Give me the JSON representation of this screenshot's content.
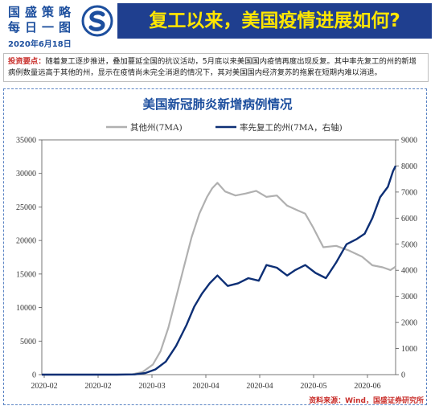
{
  "header": {
    "brand_line1": "国盛策略",
    "brand_line2": "每日一图",
    "date": "2020年6月18日",
    "banner_title": "复工以来，美国疫情进展如何?"
  },
  "note": {
    "label": "投资要点：",
    "line1": "随着复工逐步推进，叠加蔓延全国的抗议活动，5月底以来美国国内疫情再度出现反复。其中率先复工的州的新增",
    "line2": "病例数量远高于其他的州，显示在疫情尚未完全消退的情况下，其对美国国内经济复苏的拖累在短期内难以消退。"
  },
  "source": "资料来源：Wind，国盛证券研究所",
  "colors": {
    "brand": "#1d4f9e",
    "banner_bg": "#1f3f8f",
    "banner_text": "#ffe600",
    "accent_red": "#c9302c"
  },
  "chart_data": {
    "type": "line",
    "title": "美国新冠肺炎新增病例情况",
    "x_ticks": [
      "2020-02",
      "2020-02",
      "2020-03",
      "2020-04",
      "2020-04",
      "2020-05",
      "2020-06"
    ],
    "x_range": [
      "2020-02-01",
      "2020-06-17"
    ],
    "y_left": {
      "ticks": [
        "0",
        "5000",
        "10000",
        "15000",
        "20000",
        "25000",
        "30000",
        "35000"
      ],
      "range": [
        0,
        35000
      ]
    },
    "y_right": {
      "ticks": [
        "0",
        "1000",
        "2000",
        "3000",
        "4000",
        "5000",
        "6000",
        "7000",
        "8000",
        "9000"
      ],
      "range": [
        0,
        9000
      ]
    },
    "legend_placement": "top",
    "series": [
      {
        "name": "其他州(7MA)",
        "axis": "left",
        "color": "#b0b0b0",
        "x": [
          "2020-02-01",
          "2020-02-15",
          "2020-03-01",
          "2020-03-07",
          "2020-03-11",
          "2020-03-15",
          "2020-03-18",
          "2020-03-21",
          "2020-03-24",
          "2020-03-27",
          "2020-03-30",
          "2020-04-02",
          "2020-04-05",
          "2020-04-07",
          "2020-04-09",
          "2020-04-12",
          "2020-04-16",
          "2020-04-20",
          "2020-04-24",
          "2020-04-28",
          "2020-05-02",
          "2020-05-06",
          "2020-05-10",
          "2020-05-13",
          "2020-05-16",
          "2020-05-20",
          "2020-05-25",
          "2020-05-30",
          "2020-06-04",
          "2020-06-08",
          "2020-06-12",
          "2020-06-15",
          "2020-06-17"
        ],
        "y": [
          0,
          0,
          0,
          50,
          400,
          1500,
          3500,
          7000,
          11500,
          16000,
          20500,
          24000,
          26500,
          27800,
          28600,
          27300,
          26700,
          27000,
          27400,
          26500,
          26700,
          25200,
          24500,
          24000,
          22000,
          19000,
          19200,
          18500,
          17600,
          16300,
          16000,
          15600,
          16100
        ]
      },
      {
        "name": "率先复工的州(7MA，右轴)",
        "axis": "right",
        "color": "#0d2f75",
        "x": [
          "2020-02-01",
          "2020-02-20",
          "2020-03-01",
          "2020-03-08",
          "2020-03-12",
          "2020-03-16",
          "2020-03-20",
          "2020-03-24",
          "2020-03-28",
          "2020-03-31",
          "2020-04-03",
          "2020-04-06",
          "2020-04-09",
          "2020-04-13",
          "2020-04-17",
          "2020-04-21",
          "2020-04-25",
          "2020-04-28",
          "2020-05-02",
          "2020-05-06",
          "2020-05-09",
          "2020-05-13",
          "2020-05-17",
          "2020-05-21",
          "2020-05-25",
          "2020-05-29",
          "2020-06-02",
          "2020-06-05",
          "2020-06-08",
          "2020-06-11",
          "2020-06-14",
          "2020-06-16",
          "2020-06-17"
        ],
        "y": [
          0,
          0,
          0,
          10,
          60,
          200,
          500,
          1100,
          1900,
          2600,
          3100,
          3500,
          3800,
          3400,
          3500,
          3700,
          3600,
          4200,
          4100,
          3800,
          4000,
          4200,
          3900,
          3700,
          4300,
          5000,
          5200,
          5400,
          6000,
          6800,
          7200,
          7800,
          8000
        ]
      }
    ]
  }
}
